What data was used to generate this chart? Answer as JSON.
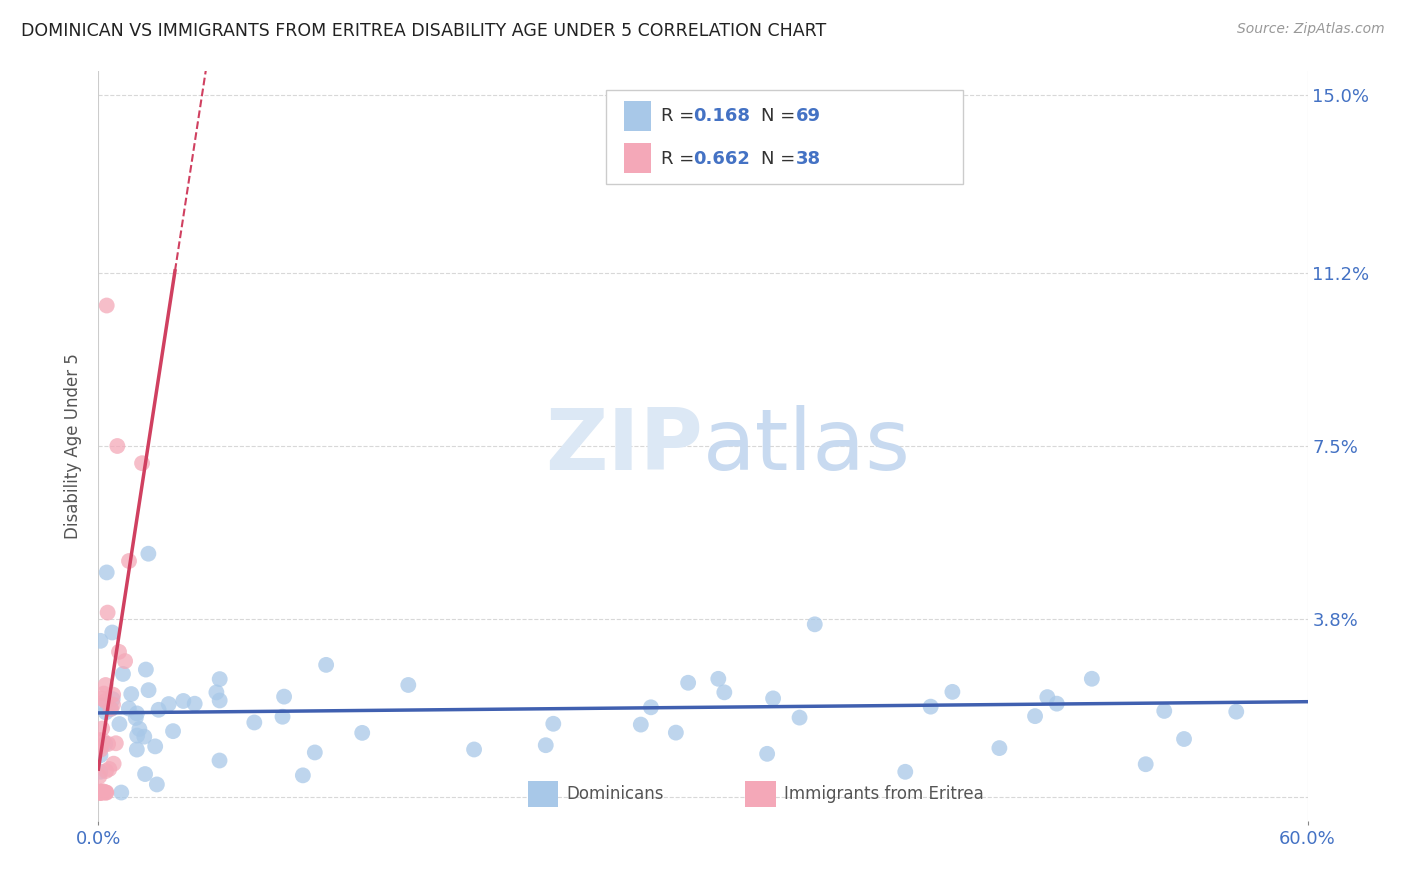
{
  "title": "DOMINICAN VS IMMIGRANTS FROM ERITREA DISABILITY AGE UNDER 5 CORRELATION CHART",
  "source": "Source: ZipAtlas.com",
  "ylabel": "Disability Age Under 5",
  "xlim": [
    0.0,
    0.6
  ],
  "ylim": [
    -0.005,
    0.155
  ],
  "yticks": [
    0.0,
    0.038,
    0.075,
    0.112,
    0.15
  ],
  "ytick_labels": [
    "",
    "3.8%",
    "7.5%",
    "11.2%",
    "15.0%"
  ],
  "color_dominican": "#a8c8e8",
  "color_eritrea": "#f4a8b8",
  "color_trend_dominican": "#4060b0",
  "color_trend_eritrea": "#d04060",
  "r_dominican": "0.168",
  "n_dominican": "69",
  "r_eritrea": "0.662",
  "n_eritrea": "38",
  "watermark_color": "#dce8f5",
  "legend_box_color": "#cccccc"
}
